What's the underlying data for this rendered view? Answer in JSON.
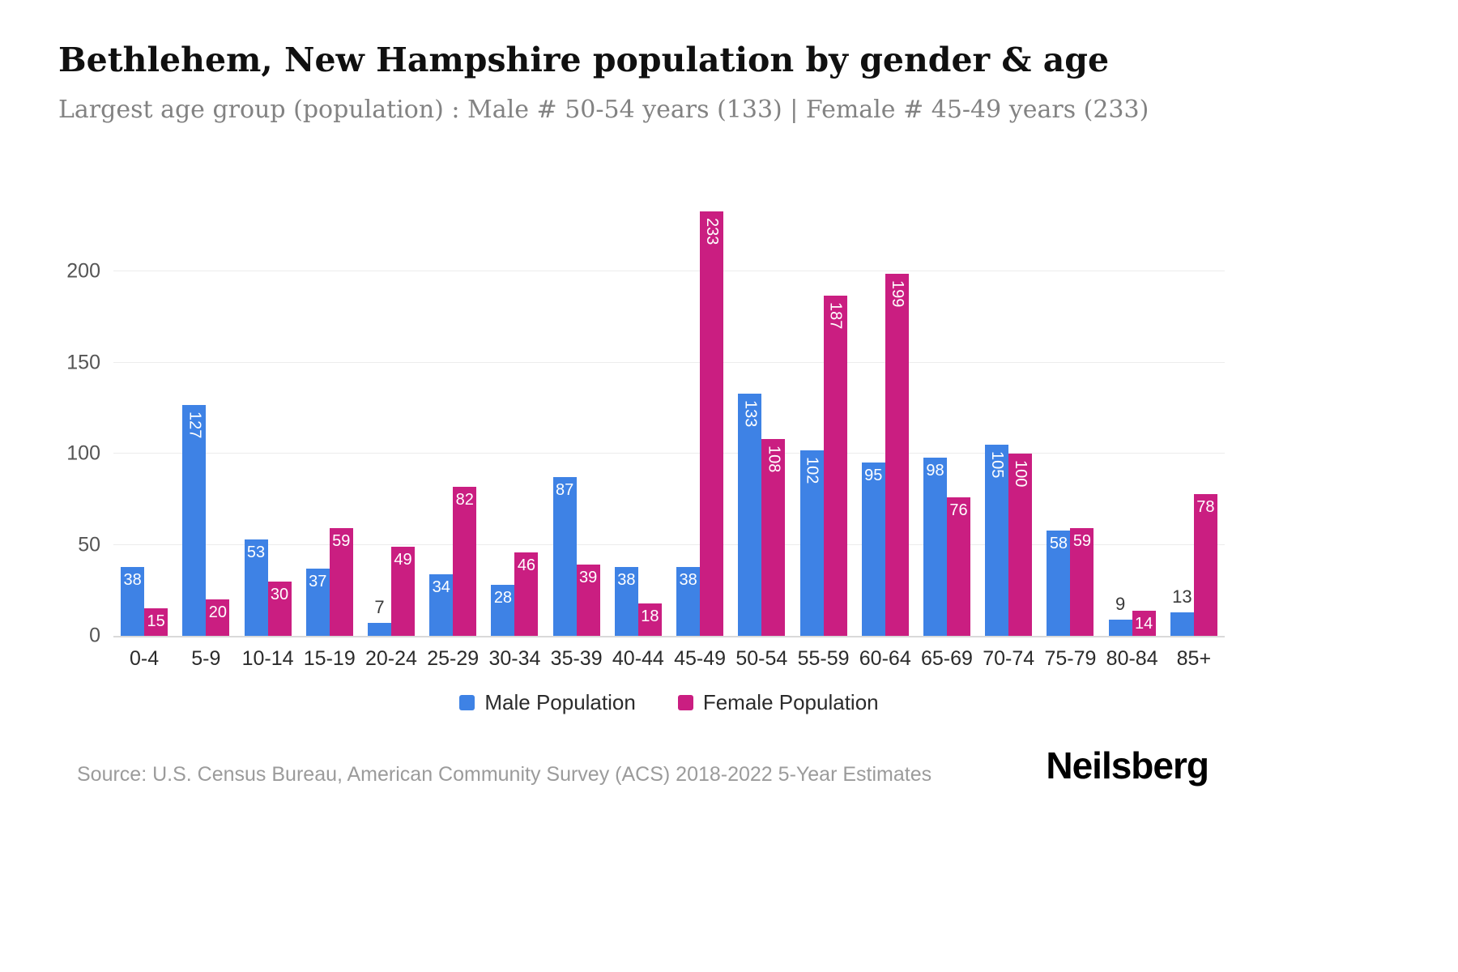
{
  "title": "Bethlehem, New Hampshire population by gender & age",
  "subtitle": "Largest age group (population) : Male # 50-54 years (133) | Female # 45-49 years (233)",
  "source_note": "Source: U.S. Census Bureau, American Community Survey (ACS) 2018-2022 5-Year Estimates",
  "logo_text": "Neilsberg",
  "colors": {
    "male": "#3e82e5",
    "female": "#ca1e81",
    "grid": "#ececec",
    "baseline": "#d9d9d9",
    "label_inside": "#ffffff",
    "label_outside": "#3a3a3a"
  },
  "chart_data": {
    "type": "bar",
    "title": "Bethlehem, New Hampshire population by gender & age",
    "categories": [
      "0-4",
      "5-9",
      "10-14",
      "15-19",
      "20-24",
      "25-29",
      "30-34",
      "35-39",
      "40-44",
      "45-49",
      "50-54",
      "55-59",
      "60-64",
      "65-69",
      "70-74",
      "75-79",
      "80-84",
      "85+"
    ],
    "series": [
      {
        "name": "Male Population",
        "color": "#3e82e5",
        "values": [
          38,
          127,
          53,
          37,
          7,
          34,
          28,
          87,
          38,
          38,
          133,
          102,
          95,
          98,
          105,
          58,
          9,
          13
        ]
      },
      {
        "name": "Female Population",
        "color": "#ca1e81",
        "values": [
          15,
          20,
          30,
          59,
          49,
          82,
          46,
          39,
          18,
          233,
          108,
          187,
          199,
          76,
          100,
          59,
          14,
          78
        ]
      }
    ],
    "xlabel": "",
    "ylabel": "",
    "yticks": [
      0,
      50,
      100,
      150,
      200
    ],
    "ymax": 258,
    "grid": "horizontal",
    "legend_position": "bottom",
    "value_labels": "inside-top, rotated when 3 digits, above bar when value < 14"
  }
}
